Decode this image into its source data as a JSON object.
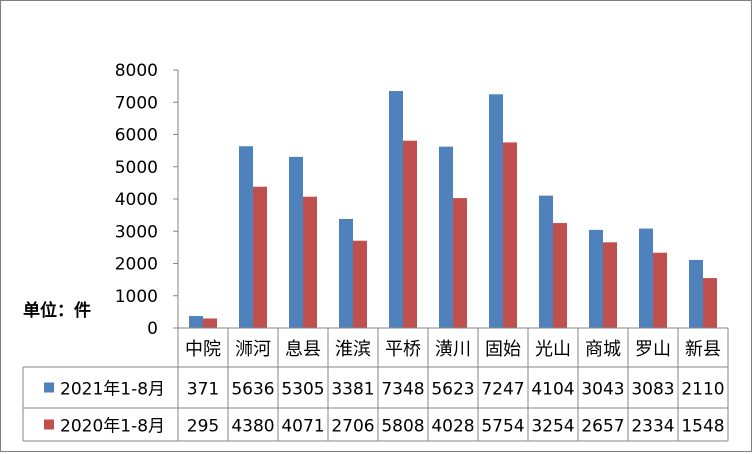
{
  "chart_data": {
    "type": "bar",
    "unit_label": "单位：件",
    "categories": [
      "中院",
      "浉河",
      "息县",
      "淮滨",
      "平桥",
      "潢川",
      "固始",
      "光山",
      "商城",
      "罗山",
      "新县"
    ],
    "series": [
      {
        "name": "2021年1-8月",
        "color": "#4f81bd",
        "values": [
          371,
          5636,
          5305,
          3381,
          7348,
          5623,
          7247,
          4104,
          3043,
          3083,
          2110
        ]
      },
      {
        "name": "2020年1-8月",
        "color": "#c0504d",
        "values": [
          295,
          4380,
          4071,
          2706,
          5808,
          4028,
          5754,
          3254,
          2657,
          2334,
          1548
        ]
      }
    ],
    "ylim": [
      0,
      8000
    ],
    "yticks": [
      0,
      1000,
      2000,
      3000,
      4000,
      5000,
      6000,
      7000,
      8000
    ],
    "grid": false,
    "legend": "data-table"
  }
}
